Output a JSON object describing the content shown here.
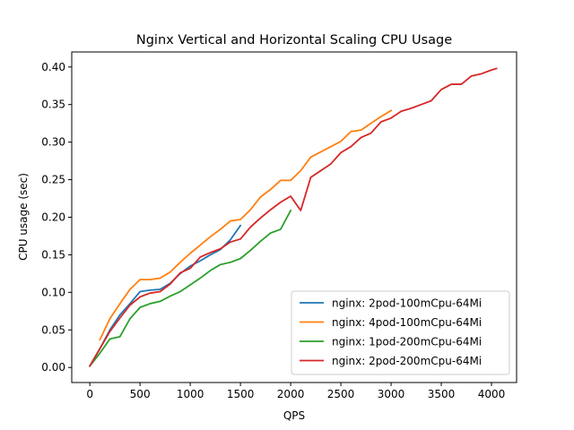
{
  "chart_data": {
    "type": "line",
    "title": "Nginx Vertical and Horizontal Scaling CPU Usage",
    "xlabel": "QPS",
    "ylabel": "CPU usage (sec)",
    "xlim": [
      -180,
      4250
    ],
    "ylim": [
      -0.02,
      0.42
    ],
    "xticks": [
      0,
      500,
      1000,
      1500,
      2000,
      2500,
      3000,
      3500,
      4000
    ],
    "xtick_labels": [
      "0",
      "500",
      "1000",
      "1500",
      "2000",
      "2500",
      "3000",
      "3500",
      "4000"
    ],
    "yticks": [
      0.0,
      0.05,
      0.1,
      0.15,
      0.2,
      0.25,
      0.3,
      0.35,
      0.4
    ],
    "ytick_labels": [
      "0.00",
      "0.05",
      "0.10",
      "0.15",
      "0.20",
      "0.25",
      "0.30",
      "0.35",
      "0.40"
    ],
    "grid": false,
    "legend_position": "lower-right",
    "series": [
      {
        "name": "nginx: 2pod-100mCpu-64Mi",
        "color": "#1f77b4",
        "x": [
          0,
          100,
          200,
          300,
          400,
          500,
          600,
          700,
          800,
          900,
          1000,
          1100,
          1200,
          1300,
          1400,
          1500
        ],
        "y": [
          0.002,
          0.025,
          0.05,
          0.07,
          0.085,
          0.101,
          0.103,
          0.104,
          0.112,
          0.125,
          0.135,
          0.142,
          0.15,
          0.157,
          0.17,
          0.189
        ]
      },
      {
        "name": "nginx: 4pod-100mCpu-64Mi",
        "color": "#ff7f0e",
        "x": [
          100,
          200,
          300,
          400,
          500,
          600,
          700,
          800,
          900,
          1000,
          1100,
          1200,
          1300,
          1400,
          1500,
          1600,
          1700,
          1800,
          1900,
          2000,
          2100,
          2200,
          2300,
          2400,
          2500,
          2600,
          2700,
          2800,
          2900,
          3000
        ],
        "y": [
          0.037,
          0.065,
          0.085,
          0.104,
          0.117,
          0.117,
          0.119,
          0.127,
          0.14,
          0.152,
          0.163,
          0.174,
          0.184,
          0.195,
          0.197,
          0.21,
          0.227,
          0.237,
          0.249,
          0.249,
          0.262,
          0.28,
          0.287,
          0.294,
          0.301,
          0.314,
          0.316,
          0.325,
          0.334,
          0.342
        ]
      },
      {
        "name": "nginx: 1pod-200mCpu-64Mi",
        "color": "#2ca02c",
        "x": [
          0,
          100,
          200,
          300,
          400,
          500,
          600,
          700,
          800,
          900,
          1000,
          1100,
          1200,
          1300,
          1400,
          1500,
          1600,
          1700,
          1800,
          1900,
          2000
        ],
        "y": [
          0.002,
          0.019,
          0.038,
          0.041,
          0.065,
          0.08,
          0.085,
          0.088,
          0.095,
          0.101,
          0.11,
          0.119,
          0.129,
          0.137,
          0.14,
          0.145,
          0.156,
          0.168,
          0.179,
          0.184,
          0.209
        ]
      },
      {
        "name": "nginx: 2pod-200mCpu-64Mi",
        "color": "#d62728",
        "x": [
          0,
          100,
          200,
          300,
          400,
          500,
          600,
          700,
          800,
          900,
          1000,
          1100,
          1200,
          1300,
          1400,
          1500,
          1600,
          1700,
          1800,
          1900,
          2000,
          2100,
          2200,
          2300,
          2400,
          2500,
          2600,
          2700,
          2800,
          2900,
          3000,
          3100,
          3200,
          3300,
          3400,
          3500,
          3600,
          3700,
          3800,
          3900,
          4000,
          4050
        ],
        "y": [
          0.002,
          0.025,
          0.048,
          0.066,
          0.083,
          0.094,
          0.099,
          0.101,
          0.111,
          0.126,
          0.132,
          0.147,
          0.153,
          0.158,
          0.167,
          0.171,
          0.187,
          0.199,
          0.21,
          0.22,
          0.228,
          0.209,
          0.253,
          0.262,
          0.271,
          0.286,
          0.294,
          0.306,
          0.312,
          0.327,
          0.332,
          0.341,
          0.345,
          0.35,
          0.355,
          0.37,
          0.377,
          0.377,
          0.388,
          0.391,
          0.396,
          0.398
        ]
      }
    ]
  }
}
